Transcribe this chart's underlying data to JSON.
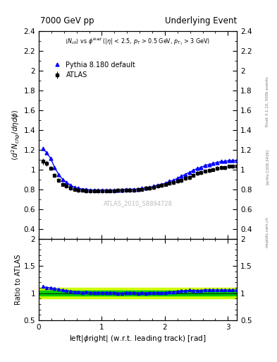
{
  "title_left": "7000 GeV pp",
  "title_right": "Underlying Event",
  "annotation": "ATLAS_2010_S8894728",
  "ylabel_main": "$\\langle d^2 N_{chg}/d\\eta d\\phi \\rangle$",
  "ylabel_ratio": "Ratio to ATLAS",
  "xlabel": "left|$\\phi$right| (w.r.t. leading track) [rad]",
  "rivet_label": "Rivet 3.1.10, 500k events",
  "arxiv_label": "[arXiv:1306.3436]",
  "mcplots_label": "mcplots.cern.ch",
  "xlim": [
    0,
    3.14159
  ],
  "ylim_main": [
    0.3,
    2.4
  ],
  "ylim_ratio": [
    0.5,
    2.0
  ],
  "yticks_main": [
    0.4,
    0.6,
    0.8,
    1.0,
    1.2,
    1.4,
    1.6,
    1.8,
    2.0,
    2.2,
    2.4
  ],
  "yticks_ratio": [
    0.5,
    1.0,
    1.5,
    2.0
  ],
  "xticks": [
    0,
    1,
    2,
    3
  ],
  "atlas_x": [
    0.0628,
    0.1257,
    0.1885,
    0.2513,
    0.3142,
    0.377,
    0.4398,
    0.5027,
    0.5655,
    0.6283,
    0.6912,
    0.754,
    0.8168,
    0.8796,
    0.9425,
    1.0053,
    1.0681,
    1.131,
    1.1938,
    1.2566,
    1.3194,
    1.3823,
    1.4451,
    1.5079,
    1.5708,
    1.6336,
    1.6964,
    1.7593,
    1.8221,
    1.8849,
    1.9478,
    2.0106,
    2.0734,
    2.1363,
    2.1991,
    2.2619,
    2.3248,
    2.3876,
    2.4504,
    2.5133,
    2.5761,
    2.6389,
    2.7017,
    2.7646,
    2.8274,
    2.8902,
    2.9531,
    3.0159,
    3.0788,
    3.1416
  ],
  "atlas_y": [
    1.08,
    1.06,
    1.01,
    0.94,
    0.89,
    0.85,
    0.83,
    0.81,
    0.8,
    0.79,
    0.79,
    0.78,
    0.78,
    0.78,
    0.78,
    0.78,
    0.78,
    0.78,
    0.78,
    0.79,
    0.79,
    0.79,
    0.79,
    0.79,
    0.8,
    0.8,
    0.81,
    0.81,
    0.82,
    0.83,
    0.84,
    0.85,
    0.86,
    0.87,
    0.88,
    0.89,
    0.91,
    0.92,
    0.94,
    0.96,
    0.97,
    0.98,
    0.99,
    1.0,
    1.01,
    1.02,
    1.02,
    1.03,
    1.03,
    1.03
  ],
  "atlas_yerr": [
    0.03,
    0.03,
    0.02,
    0.02,
    0.02,
    0.02,
    0.02,
    0.02,
    0.02,
    0.02,
    0.02,
    0.02,
    0.02,
    0.02,
    0.02,
    0.02,
    0.02,
    0.02,
    0.02,
    0.02,
    0.02,
    0.02,
    0.02,
    0.02,
    0.02,
    0.02,
    0.02,
    0.02,
    0.02,
    0.02,
    0.02,
    0.02,
    0.02,
    0.02,
    0.02,
    0.02,
    0.02,
    0.02,
    0.02,
    0.02,
    0.02,
    0.02,
    0.02,
    0.02,
    0.02,
    0.02,
    0.02,
    0.02,
    0.02,
    0.02
  ],
  "pythia_x": [
    0.0628,
    0.1257,
    0.1885,
    0.2513,
    0.3142,
    0.377,
    0.4398,
    0.5027,
    0.5655,
    0.6283,
    0.6912,
    0.754,
    0.8168,
    0.8796,
    0.9425,
    1.0053,
    1.0681,
    1.131,
    1.1938,
    1.2566,
    1.3194,
    1.3823,
    1.4451,
    1.5079,
    1.5708,
    1.6336,
    1.6964,
    1.7593,
    1.8221,
    1.8849,
    1.9478,
    2.0106,
    2.0734,
    2.1363,
    2.1991,
    2.2619,
    2.3248,
    2.3876,
    2.4504,
    2.5133,
    2.5761,
    2.6389,
    2.7017,
    2.7646,
    2.8274,
    2.8902,
    2.9531,
    3.0159,
    3.0788,
    3.1416
  ],
  "pythia_y": [
    1.21,
    1.17,
    1.11,
    1.02,
    0.95,
    0.9,
    0.87,
    0.84,
    0.82,
    0.81,
    0.8,
    0.8,
    0.79,
    0.79,
    0.79,
    0.79,
    0.79,
    0.79,
    0.79,
    0.79,
    0.79,
    0.8,
    0.8,
    0.8,
    0.8,
    0.81,
    0.81,
    0.82,
    0.83,
    0.84,
    0.85,
    0.86,
    0.88,
    0.89,
    0.91,
    0.93,
    0.95,
    0.97,
    0.99,
    1.01,
    1.02,
    1.04,
    1.05,
    1.06,
    1.07,
    1.08,
    1.08,
    1.09,
    1.09,
    1.09
  ],
  "atlas_color": "#000000",
  "pythia_color": "#0000ff",
  "ratio_band_color_inner": "#00cc00",
  "ratio_band_color_outer": "#ccff00",
  "bg_color": "#ffffff"
}
